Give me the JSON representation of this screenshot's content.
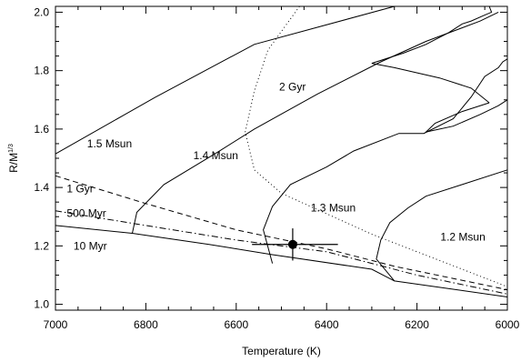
{
  "chart_data": {
    "type": "line",
    "title": "",
    "xlabel": "Temperature (K)",
    "ylabel": "R/M",
    "ylabel_exponent": "1/3",
    "xlim": [
      7000,
      6000
    ],
    "ylim": [
      0.98,
      2.02
    ],
    "x_reversed": true,
    "grid": false,
    "x_ticks": [
      7000,
      6800,
      6600,
      6400,
      6200,
      6000
    ],
    "y_ticks": [
      1.0,
      1.2,
      1.4,
      1.6,
      1.8,
      2.0
    ],
    "x_tick_labels": [
      "7000",
      "6800",
      "6600",
      "6400",
      "6200",
      "6000"
    ],
    "y_tick_labels": [
      "1.0",
      "1.2",
      "1.4",
      "1.6",
      "1.8",
      "2.0"
    ],
    "series": [
      {
        "kind": "track",
        "label": "1.5 Msun",
        "dash": "solid",
        "label_at": [
          6930,
          1.55
        ],
        "points": [
          [
            7000,
            1.515
          ],
          [
            6780,
            1.708
          ],
          [
            6560,
            1.89
          ],
          [
            6250,
            2.02
          ]
        ]
      },
      {
        "kind": "track",
        "label": "1.4 Msun",
        "dash": "solid",
        "label_at": [
          6695,
          1.51
        ],
        "points": [
          [
            6830,
            1.243
          ],
          [
            6820,
            1.315
          ],
          [
            6760,
            1.41
          ],
          [
            6640,
            1.522
          ],
          [
            6560,
            1.6
          ],
          [
            6420,
            1.72
          ],
          [
            6280,
            1.83
          ],
          [
            6180,
            1.9
          ],
          [
            6060,
            1.97
          ],
          [
            6020,
            2.0
          ]
        ]
      },
      {
        "kind": "track",
        "label": "1.3 Msun",
        "dash": "solid",
        "label_at": [
          6435,
          1.33
        ],
        "points": [
          [
            6520,
            1.14
          ],
          [
            6540,
            1.255
          ],
          [
            6520,
            1.335
          ],
          [
            6480,
            1.41
          ],
          [
            6400,
            1.47
          ],
          [
            6340,
            1.525
          ],
          [
            6240,
            1.585
          ],
          [
            6185,
            1.585
          ],
          [
            6120,
            1.635
          ],
          [
            6080,
            1.71
          ],
          [
            6050,
            1.78
          ],
          [
            6020,
            1.81
          ],
          [
            6010,
            1.83
          ],
          [
            6000,
            1.84
          ]
        ]
      },
      {
        "kind": "track",
        "label": "1.2 Msun",
        "dash": "solid",
        "label_at": [
          6148,
          1.23
        ],
        "points": [
          [
            6250,
            1.08
          ],
          [
            6290,
            1.155
          ],
          [
            6280,
            1.22
          ],
          [
            6260,
            1.28
          ],
          [
            6220,
            1.33
          ],
          [
            6180,
            1.37
          ],
          [
            6100,
            1.41
          ],
          [
            6000,
            1.46
          ]
        ]
      },
      {
        "kind": "loop",
        "label": "",
        "dash": "solid",
        "points": [
          [
            6040,
            1.69
          ],
          [
            6080,
            1.74
          ],
          [
            6150,
            1.775
          ],
          [
            6250,
            1.81
          ],
          [
            6300,
            1.825
          ],
          [
            6290,
            1.83
          ],
          [
            6230,
            1.86
          ],
          [
            6180,
            1.89
          ],
          [
            6130,
            1.93
          ],
          [
            6100,
            1.96
          ],
          [
            6080,
            1.97
          ],
          [
            6050,
            1.99
          ],
          [
            6035,
            2.0
          ],
          [
            6040,
            2.02
          ]
        ]
      },
      {
        "kind": "loop",
        "label": "",
        "dash": "solid",
        "points": [
          [
            6040,
            1.69
          ],
          [
            6100,
            1.66
          ],
          [
            6160,
            1.62
          ],
          [
            6180,
            1.59
          ],
          [
            6120,
            1.61
          ],
          [
            6060,
            1.65
          ],
          [
            6020,
            1.68
          ],
          [
            6000,
            1.7
          ]
        ]
      },
      {
        "kind": "isochrone",
        "label": "10 Myr",
        "dash": "solid",
        "label_at": [
          6960,
          1.2
        ],
        "points": [
          [
            7000,
            1.27
          ],
          [
            6830,
            1.243
          ],
          [
            6660,
            1.205
          ],
          [
            6520,
            1.17
          ],
          [
            6300,
            1.12
          ],
          [
            6250,
            1.08
          ],
          [
            6000,
            1.025
          ]
        ]
      },
      {
        "kind": "isochrone",
        "label": "500 Myr",
        "dash": "dashdot",
        "label_at": [
          6975,
          1.312
        ],
        "points": [
          [
            7000,
            1.32
          ],
          [
            6800,
            1.27
          ],
          [
            6600,
            1.22
          ],
          [
            6400,
            1.18
          ],
          [
            6200,
            1.1
          ],
          [
            6000,
            1.035
          ]
        ]
      },
      {
        "kind": "isochrone",
        "label": "1 Gyr",
        "dash": "dashed",
        "label_at": [
          6975,
          1.395
        ],
        "points": [
          [
            7000,
            1.44
          ],
          [
            6800,
            1.345
          ],
          [
            6600,
            1.255
          ],
          [
            6400,
            1.19
          ],
          [
            6250,
            1.13
          ],
          [
            6000,
            1.05
          ]
        ]
      },
      {
        "kind": "isochrone",
        "label": "2 Gyr",
        "dash": "dotted",
        "label_at": [
          6505,
          1.745
        ],
        "points": [
          [
            6460,
            2.02
          ],
          [
            6530,
            1.87
          ],
          [
            6560,
            1.73
          ],
          [
            6580,
            1.59
          ],
          [
            6560,
            1.46
          ],
          [
            6500,
            1.38
          ],
          [
            6400,
            1.31
          ],
          [
            6300,
            1.24
          ],
          [
            6200,
            1.18
          ],
          [
            6100,
            1.12
          ],
          [
            6000,
            1.06
          ]
        ]
      }
    ],
    "star": {
      "label": "",
      "x": 6475,
      "y": 1.205,
      "x_err": [
        6565,
        6375
      ],
      "y_err": [
        1.15,
        1.26
      ]
    }
  }
}
